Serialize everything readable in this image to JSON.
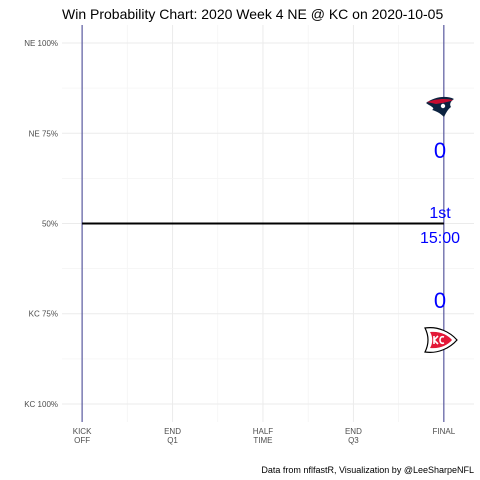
{
  "chart_data": {
    "type": "line",
    "title": "Win Probability Chart: 2020 Week 4 NE @ KC on 2020-10-05",
    "caption": "Data from nflfastR, Visualization by @LeeSharpeNFL",
    "x_ticks": [
      {
        "value": 0,
        "lines": [
          "KICK",
          "OFF"
        ]
      },
      {
        "value": 900,
        "lines": [
          "END",
          "Q1"
        ]
      },
      {
        "value": 1800,
        "lines": [
          "HALF",
          "TIME"
        ]
      },
      {
        "value": 2700,
        "lines": [
          "END",
          "Q3"
        ]
      },
      {
        "value": 3600,
        "lines": [
          "FINAL"
        ]
      }
    ],
    "xlim": [
      -200,
      3900
    ],
    "y_ticks": [
      {
        "value": 1.0,
        "label": "NE 100%"
      },
      {
        "value": 0.75,
        "label": "NE 75%"
      },
      {
        "value": 0.5,
        "label": "50%"
      },
      {
        "value": 0.25,
        "label": "KC 75%"
      },
      {
        "value": 0.0,
        "label": "KC 100%"
      }
    ],
    "ylim": [
      -0.05,
      1.05
    ],
    "grid": true,
    "series": [
      {
        "x": [
          0,
          3600
        ],
        "y": [
          0.5,
          0.5
        ],
        "color": "#000000"
      }
    ],
    "vlines": [
      {
        "x": 0,
        "color": "#3b3b8f"
      },
      {
        "x": 3600,
        "color": "#3b3b8f"
      }
    ],
    "top_team": {
      "logo": "patriots-logo",
      "score": "0",
      "primary": "#0c2340",
      "secondary": "#c60c30"
    },
    "bottom_team": {
      "logo": "chiefs-logo",
      "score": "0",
      "primary": "#e31837",
      "secondary": "#ffffff"
    },
    "game_state": {
      "quarter": "1st",
      "clock": "15:00"
    },
    "accent_color": "#0000ff"
  }
}
